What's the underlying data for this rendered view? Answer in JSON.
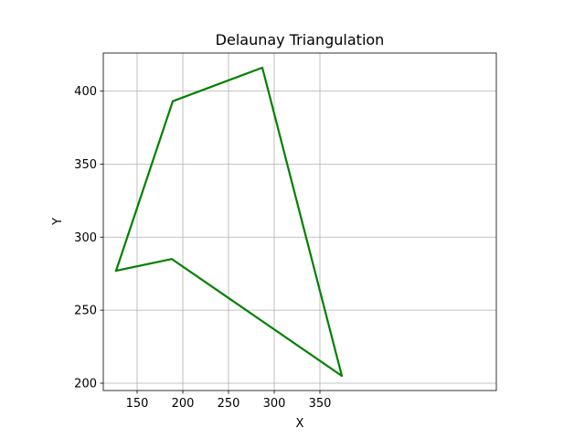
{
  "chart_data": {
    "type": "line",
    "title": "Delaunay Triangulation",
    "xlabel": "X",
    "ylabel": "Y",
    "xlim": [
      113,
      543
    ],
    "ylim": [
      195,
      426
    ],
    "xticks": [
      150,
      200,
      250,
      300,
      350
    ],
    "yticks": [
      200,
      250,
      300,
      350,
      400
    ],
    "grid": true,
    "series": [
      {
        "color": "#008000",
        "points": [
          [
            127,
            277
          ],
          [
            189,
            393
          ],
          [
            287,
            416
          ],
          [
            374,
            205
          ],
          [
            188,
            285
          ],
          [
            127,
            277
          ]
        ]
      }
    ]
  }
}
